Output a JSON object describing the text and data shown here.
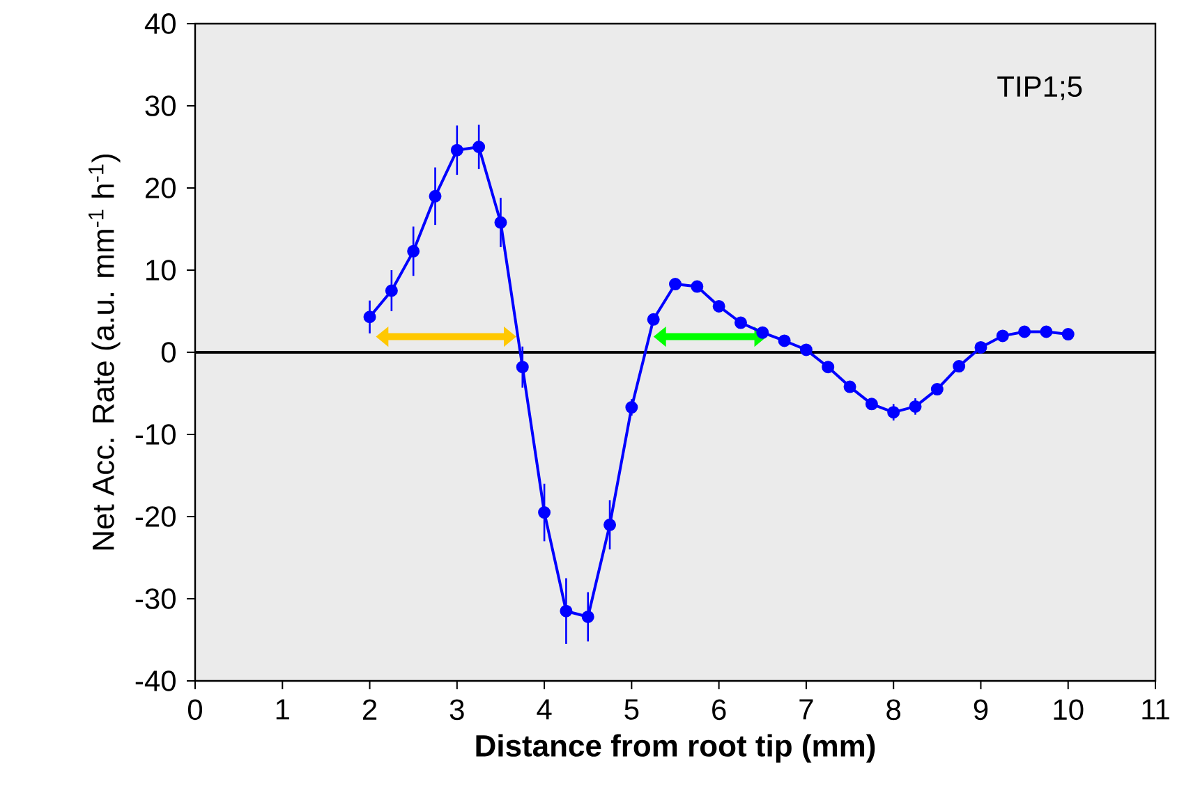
{
  "chart_data": {
    "type": "line",
    "xlabel": "Distance from root tip (mm)",
    "ylabel": "Net Acc. Rate (a.u. mm$^{-1}$ h$^{-1}$)",
    "annotations": [
      "TIP1;5"
    ],
    "x": [
      2,
      2.25,
      2.5,
      2.75,
      3,
      3.25,
      3.5,
      3.75,
      4,
      4.25,
      4.5,
      4.75,
      5,
      5.25,
      5.5,
      5.75,
      6,
      6.25,
      6.5,
      6.75,
      7,
      7.25,
      7.5,
      7.75,
      8,
      8.25,
      8.5,
      8.75,
      9,
      9.25,
      9.5,
      9.75,
      10
    ],
    "series": [
      {
        "color": "#0000ff",
        "values": [
          4.3,
          7.5,
          12.3,
          19,
          24.6,
          25,
          15.8,
          -1.8,
          -19.5,
          -31.5,
          -32.2,
          -21,
          -6.7,
          4,
          8.3,
          8,
          5.6,
          3.6,
          2.4,
          1.4,
          0.3,
          -1.8,
          -4.2,
          -6.3,
          -7.3,
          -6.6,
          -4.5,
          -1.7,
          0.6,
          2,
          2.5,
          2.5,
          2.2
        ],
        "errors": [
          2,
          2.5,
          3,
          3.5,
          3,
          2.7,
          3,
          2.5,
          3.5,
          4,
          3,
          3,
          1,
          0.5,
          0.5,
          0.5,
          0.5,
          0.5,
          0.5,
          0.5,
          0.5,
          0.5,
          0.5,
          0.5,
          1,
          1,
          0.5,
          0.5,
          0.5,
          0.5,
          0.5,
          0.5,
          0.5
        ]
      }
    ],
    "xlim": [
      0,
      11
    ],
    "xticks": [
      0,
      1,
      2,
      3,
      4,
      5,
      6,
      7,
      8,
      9,
      10,
      11
    ],
    "ylim": [
      -40,
      40
    ],
    "yticks": [
      -40,
      -30,
      -20,
      -10,
      0,
      10,
      20,
      30,
      40
    ],
    "ref_lines": [
      {
        "axis": "y",
        "value": 0,
        "color": "#000000"
      }
    ],
    "grid": false,
    "marker": "circle",
    "line_style": "solid"
  }
}
